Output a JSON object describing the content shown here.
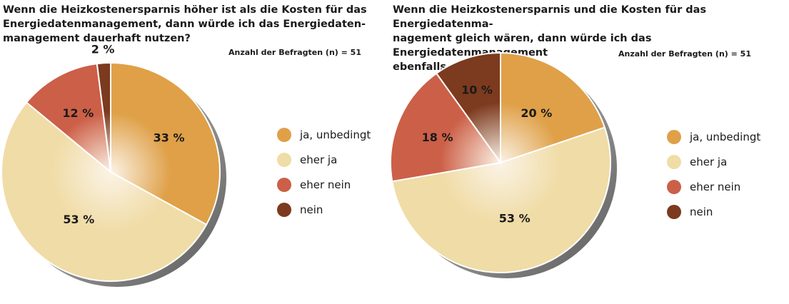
{
  "colors": {
    "ja_unbedingt": "#dfa048",
    "eher_ja": "#f0dca6",
    "eher_nein": "#cc5f47",
    "nein": "#7c3a1f"
  },
  "chart_data": [
    {
      "type": "pie",
      "title": "Wenn die Heizkostenersparnis höher ist als die Kosten für das\nEnergiedatenmanagement, dann würde ich das Energiedaten-\nmanagement dauerhaft nutzen?",
      "sample_size_label": "Anzahl der Befragten (n) = 51",
      "slices": [
        {
          "label": "ja, unbedingt",
          "value": 33,
          "value_label": "33 %"
        },
        {
          "label": "eher ja",
          "value": 53,
          "value_label": "53 %"
        },
        {
          "label": "eher nein",
          "value": 12,
          "value_label": "12 %"
        },
        {
          "label": "nein",
          "value": 2,
          "value_label": "2 %"
        }
      ],
      "legend": [
        "ja, unbedingt",
        "eher ja",
        "eher nein",
        "nein"
      ],
      "legend_position": "right"
    },
    {
      "type": "pie",
      "title": "Wenn die Heizkostenersparnis und die Kosten für das Energiedatenma-\nnagement gleich wären, dann würde ich das Energiedatenmanagement\nebenfalls nutzen?",
      "sample_size_label": "Anzahl der Befragten (n) = 51",
      "slices": [
        {
          "label": "ja, unbedingt",
          "value": 20,
          "value_label": "20 %"
        },
        {
          "label": "eher ja",
          "value": 53,
          "value_label": "53 %"
        },
        {
          "label": "eher nein",
          "value": 18,
          "value_label": "18 %"
        },
        {
          "label": "nein",
          "value": 10,
          "value_label": "10 %"
        }
      ],
      "legend": [
        "ja, unbedingt",
        "eher ja",
        "eher nein",
        "nein"
      ],
      "legend_position": "right"
    }
  ]
}
